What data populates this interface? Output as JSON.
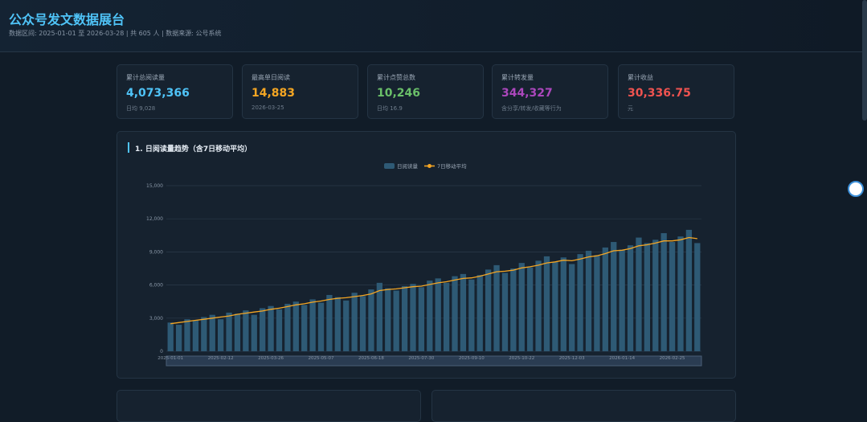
{
  "header": {
    "title": "公众号发文数据展台",
    "subtitle": "数据区间: 2025-01-01 至 2026-03-28 | 共 605 人 | 数据来源: 公号系统"
  },
  "cards": [
    {
      "label": "累计总阅读量",
      "value": "4,073,366",
      "note": "日均 9,028",
      "color": "#4fc3f7"
    },
    {
      "label": "最高单日阅读",
      "value": "14,883",
      "note": "2026-03-25",
      "color": "#f5a623"
    },
    {
      "label": "累计点赞总数",
      "value": "10,246",
      "note": "日均 16.9",
      "color": "#6abf69"
    },
    {
      "label": "累计转发量",
      "value": "344,327",
      "note": "含分享/转发/收藏等行为",
      "color": "#ab47bc"
    },
    {
      "label": "累计收益",
      "value": "30,336.75",
      "note": "元",
      "color": "#ef5350"
    }
  ],
  "chart_data": {
    "type": "bar-line",
    "title": "1. 日阅读量趋势（含7日移动平均）",
    "categories": [
      "2025-01-01",
      null,
      null,
      null,
      null,
      null,
      "2025-02-12",
      null,
      null,
      null,
      null,
      null,
      "2025-03-26",
      null,
      null,
      null,
      null,
      null,
      "2025-05-07",
      null,
      null,
      null,
      null,
      null,
      "2025-06-18",
      null,
      null,
      null,
      null,
      null,
      "2025-07-30",
      null,
      null,
      null,
      null,
      null,
      "2025-09-10",
      null,
      null,
      null,
      null,
      null,
      "2025-10-22",
      null,
      null,
      null,
      null,
      null,
      "2025-12-03",
      null,
      null,
      null,
      null,
      null,
      "2026-01-14",
      null,
      null,
      null,
      null,
      null,
      "2026-02-25",
      null,
      null,
      null
    ],
    "series": [
      {
        "name": "日阅读量",
        "type": "bar",
        "color": "#2e5a75",
        "values": [
          2600,
          2400,
          2900,
          2800,
          3100,
          3300,
          2900,
          3500,
          3400,
          3700,
          3300,
          3900,
          4100,
          3800,
          4300,
          4500,
          4200,
          4700,
          4400,
          5100,
          4900,
          4600,
          5300,
          5000,
          5600,
          6200,
          5700,
          5500,
          5900,
          6100,
          5800,
          6400,
          6600,
          6200,
          6800,
          7000,
          6500,
          6900,
          7400,
          7800,
          7100,
          7500,
          8000,
          7600,
          8200,
          8600,
          8100,
          8500,
          7900,
          8800,
          9100,
          8700,
          9400,
          9900,
          9200,
          9600,
          10300,
          9800,
          10100,
          10700,
          9900,
          10400,
          11000,
          9800
        ]
      },
      {
        "name": "7日移动平均",
        "type": "line",
        "color": "#f5a623",
        "values": [
          2500,
          2600,
          2700,
          2800,
          2900,
          3000,
          3100,
          3200,
          3350,
          3450,
          3550,
          3650,
          3800,
          3900,
          4050,
          4200,
          4300,
          4450,
          4550,
          4700,
          4800,
          4850,
          4950,
          5050,
          5200,
          5500,
          5600,
          5650,
          5750,
          5850,
          5900,
          6050,
          6200,
          6300,
          6450,
          6600,
          6650,
          6800,
          7000,
          7200,
          7250,
          7350,
          7550,
          7650,
          7800,
          8000,
          8100,
          8250,
          8200,
          8350,
          8550,
          8650,
          8850,
          9100,
          9150,
          9300,
          9550,
          9650,
          9800,
          10000,
          10000,
          10100,
          10300,
          10200
        ]
      }
    ],
    "ylim": [
      0,
      15000
    ],
    "yticks": [
      0,
      {
        "value": 3000,
        "label": "3,000"
      },
      {
        "value": 6000,
        "label": "6,000"
      },
      {
        "value": 9000,
        "label": "9,000"
      },
      {
        "value": 12000,
        "label": "12,000"
      },
      {
        "value": 15000,
        "label": "15,000"
      }
    ],
    "grid": true
  }
}
